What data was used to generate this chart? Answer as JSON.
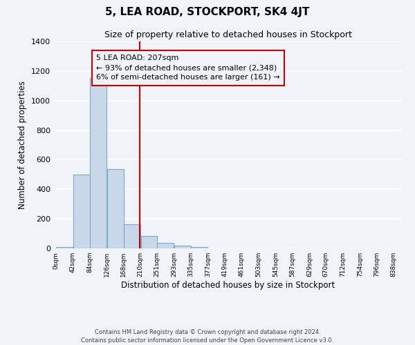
{
  "title": "5, LEA ROAD, STOCKPORT, SK4 4JT",
  "subtitle": "Size of property relative to detached houses in Stockport",
  "xlabel": "Distribution of detached houses by size in Stockport",
  "ylabel": "Number of detached properties",
  "bar_left_edges": [
    0,
    42,
    84,
    126,
    168,
    210,
    251,
    293,
    335,
    377,
    419,
    461,
    503,
    545,
    587,
    629,
    670,
    712,
    754,
    796
  ],
  "bar_widths": [
    42,
    42,
    42,
    42,
    42,
    41,
    42,
    42,
    42,
    42,
    42,
    42,
    42,
    42,
    42,
    41,
    42,
    42,
    42,
    42
  ],
  "bar_heights": [
    10,
    500,
    1155,
    538,
    163,
    85,
    37,
    18,
    8,
    0,
    0,
    0,
    0,
    0,
    0,
    0,
    0,
    0,
    0,
    0
  ],
  "bar_color": "#c8d8e8",
  "bar_edge_color": "#7aaac8",
  "tick_labels": [
    "0sqm",
    "42sqm",
    "84sqm",
    "126sqm",
    "168sqm",
    "210sqm",
    "251sqm",
    "293sqm",
    "335sqm",
    "377sqm",
    "419sqm",
    "461sqm",
    "503sqm",
    "545sqm",
    "587sqm",
    "629sqm",
    "670sqm",
    "712sqm",
    "754sqm",
    "796sqm",
    "838sqm"
  ],
  "vline_x": 207,
  "vline_color": "#cc0000",
  "annotation_line1": "5 LEA ROAD: 207sqm",
  "annotation_line2": "← 93% of detached houses are smaller (2,348)",
  "annotation_line3": "6% of semi-detached houses are larger (161) →",
  "annotation_box_edge": "#cc0000",
  "ylim": [
    0,
    1400
  ],
  "yticks": [
    0,
    200,
    400,
    600,
    800,
    1000,
    1200,
    1400
  ],
  "background_color": "#f0f4f8",
  "grid_color": "#ffffff",
  "footnote1": "Contains HM Land Registry data © Crown copyright and database right 2024.",
  "footnote2": "Contains public sector information licensed under the Open Government Licence v3.0."
}
